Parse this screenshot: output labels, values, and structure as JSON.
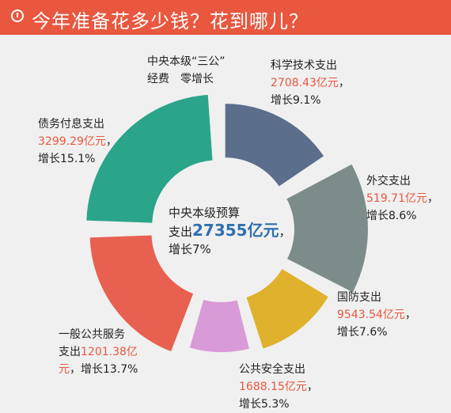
{
  "header": {
    "title": "今年准备花多少钱？花到哪儿？"
  },
  "center": {
    "line1": "中央本级预算",
    "prefix": "支出",
    "value": "27355亿元",
    "suffix": "，",
    "line3": "增长7%"
  },
  "labels": {
    "sangong": {
      "line1": "中央本级“三公”",
      "line2": "经费　零增长"
    },
    "keji": {
      "name": "科学技术支出",
      "value": "2708.43亿元",
      "sep": "，",
      "growth": "增长9.1%"
    },
    "waijiao": {
      "name": "外交支出",
      "value": "519.71亿元",
      "sep": "，",
      "growth": "增长8.6%"
    },
    "guofang": {
      "name": "国防支出",
      "value": "9543.54亿元",
      "sep": "，",
      "growth": "增长7.6%"
    },
    "gonggong": {
      "name": "公共安全支出",
      "value": "1688.15亿元",
      "sep": "，",
      "growth": "增长5.3%"
    },
    "yiban": {
      "line1": "一般公共服务",
      "prefix": "支出",
      "value1": "1201.38亿",
      "value2": "元",
      "sep": "，",
      "growth": "增长13.7%"
    },
    "zhaiwu": {
      "name": "债务付息支出",
      "value": "3299.29亿元",
      "sep": "，",
      "growth": "增长15.1%"
    }
  },
  "chart_data": {
    "type": "pie",
    "categories": [
      "科学技术支出",
      "外交支出",
      "国防支出",
      "公共安全支出",
      "一般公共服务支出",
      "债务付息支出"
    ],
    "values": [
      2708.43,
      519.71,
      9543.54,
      1688.15,
      1201.38,
      3299.29
    ],
    "growth": [
      "9.1%",
      "8.6%",
      "7.6%",
      "5.3%",
      "13.7%",
      "15.1%"
    ],
    "colors": [
      "#5b6e8c",
      "#7b8c8a",
      "#e0b12c",
      "#d99ad8",
      "#e8604f",
      "#2aa58a"
    ],
    "total_label": "27355亿元"
  }
}
